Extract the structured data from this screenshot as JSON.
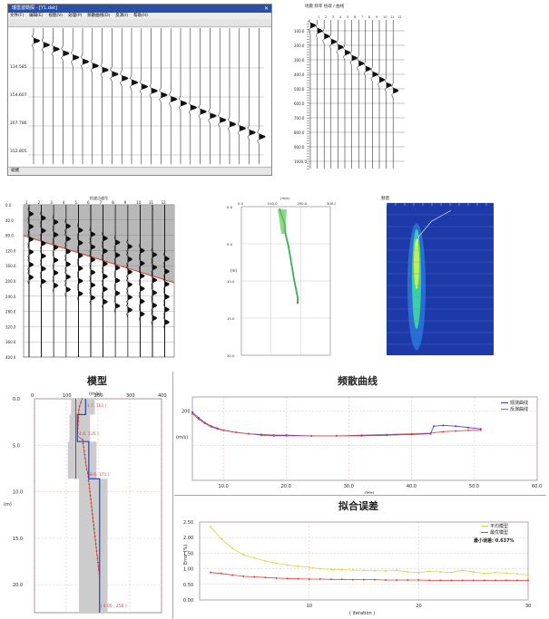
{
  "window1": {
    "title": "瑞雷波勘探 - [Y1.dat]",
    "menu": [
      "文件(F)",
      "编辑(E)",
      "视图(V)",
      "处理(P)",
      "频散曲线(D)",
      "反演(I)",
      "帮助(H)"
    ],
    "depth_labels": [
      "134.585",
      "154.607",
      "267.786",
      "312.805"
    ],
    "status_left": "就绪"
  },
  "window2": {
    "title": "地震 频率 拾取 / 曲线",
    "depth_labels": [
      "100.0",
      "200.0",
      "300.0",
      "400.0",
      "500.0",
      "600.0",
      "700.0",
      "800.0",
      "900.0",
      "1000.0"
    ]
  },
  "shot_gather": {
    "header": "检波点道号",
    "top_ticks": [
      "1",
      "2",
      "3",
      "4",
      "5",
      "6",
      "7",
      "8",
      "9",
      "10",
      "11",
      "12"
    ],
    "left_ticks": [
      "0.0",
      "40.0",
      "80.0",
      "120.0",
      "160.0",
      "200.0",
      "240.0",
      "280.0",
      "320.0",
      "360.0",
      "400.0"
    ]
  },
  "green_plot": {
    "xunit": "(m/s)",
    "xticks": [
      "0.0",
      "100.0",
      "200.0",
      "300.0"
    ],
    "ylabel": "(m)",
    "yticks": [
      "0.0",
      "5.0",
      "10.0",
      "15.0",
      "20.0"
    ]
  },
  "spectrum": {
    "title": "频谱"
  },
  "model": {
    "title": "模型",
    "xunit": "(m/s)",
    "xticks": [
      "0",
      "100",
      "200",
      "300",
      "400"
    ],
    "ylabel": "(m)",
    "yticks": [
      "0.0",
      "5.0",
      "10.0",
      "15.0",
      "20.0"
    ],
    "annotations": [
      "1.7, 161 )",
      "4.6, 135 )",
      "8.6, 171 )",
      "( 4.05 , 256 )"
    ]
  },
  "dispersion": {
    "title": "频散曲线",
    "ylabel": "(m/s)",
    "xlabel": "(Hz)",
    "ytick": "200",
    "xticks": [
      "10.0",
      "20.0",
      "30.0",
      "40.0",
      "50.0",
      "60.0"
    ],
    "legend": [
      "观测曲线",
      "反演曲线"
    ],
    "colors": {
      "observed": "#3a3ae0",
      "inverted": "#e04040"
    }
  },
  "chart_data": [
    {
      "type": "line",
      "title": "频散曲线",
      "xlabel": "(Hz)",
      "ylabel": "(m/s)",
      "xlim": [
        5,
        60
      ],
      "ylim": [
        100,
        220
      ],
      "series": [
        {
          "name": "观测曲线",
          "x": [
            5,
            6,
            7,
            8,
            9,
            10,
            12,
            14,
            16,
            18,
            20,
            24,
            28,
            32,
            36,
            40,
            43,
            43.5,
            45,
            47,
            49,
            51
          ],
          "y": [
            198,
            190,
            183,
            178,
            175,
            172,
            169,
            167,
            166,
            165,
            165,
            164,
            164,
            164,
            165,
            166,
            167,
            178,
            179,
            178,
            176,
            174
          ]
        },
        {
          "name": "反演曲线",
          "x": [
            5,
            6,
            7,
            8,
            9,
            10,
            12,
            14,
            16,
            18,
            20,
            24,
            28,
            32,
            36,
            40,
            43,
            45,
            47,
            49,
            51
          ],
          "y": [
            196,
            188,
            182,
            177,
            174,
            172,
            169,
            167,
            165,
            164,
            164,
            164,
            164,
            165,
            166,
            167,
            168,
            170,
            171,
            172,
            172
          ]
        }
      ]
    },
    {
      "type": "line",
      "title": "拟合误差",
      "xlabel": "( iteration )",
      "ylabel": "Error (%)",
      "xlim": [
        0,
        30
      ],
      "ylim": [
        0,
        2.5
      ],
      "series": [
        {
          "name": "平均模型",
          "x": [
            1,
            2,
            3,
            4,
            5,
            6,
            7,
            8,
            9,
            10,
            11,
            12,
            13,
            14,
            15,
            16,
            17,
            18,
            19,
            20,
            21,
            22,
            23,
            24,
            25,
            26,
            27,
            28,
            29,
            30
          ],
          "y": [
            2.35,
            1.95,
            1.65,
            1.45,
            1.35,
            1.25,
            1.18,
            1.12,
            1.08,
            1.05,
            1.0,
            0.98,
            0.97,
            0.96,
            0.95,
            0.94,
            0.93,
            0.95,
            0.9,
            0.88,
            0.92,
            0.9,
            0.88,
            0.95,
            0.9,
            0.85,
            0.88,
            0.86,
            0.84,
            0.8
          ]
        },
        {
          "name": "最优模型",
          "x": [
            1,
            2,
            3,
            4,
            5,
            6,
            7,
            8,
            9,
            10,
            11,
            12,
            13,
            14,
            15,
            16,
            17,
            18,
            19,
            20,
            21,
            22,
            23,
            24,
            25,
            26,
            27,
            28,
            29,
            30
          ],
          "y": [
            0.88,
            0.85,
            0.8,
            0.76,
            0.74,
            0.72,
            0.7,
            0.69,
            0.68,
            0.67,
            0.67,
            0.66,
            0.66,
            0.65,
            0.65,
            0.65,
            0.64,
            0.64,
            0.64,
            0.64,
            0.63,
            0.63,
            0.63,
            0.63,
            0.63,
            0.63,
            0.63,
            0.63,
            0.63,
            0.63
          ]
        }
      ]
    }
  ],
  "misfit": {
    "title": "拟合误差",
    "ylabel": "Error (%)",
    "xlabel": "( iteration )",
    "yticks": [
      "2.50",
      "2.00",
      "1.50",
      "1.00",
      "0.50",
      "0.00"
    ],
    "xticks": [
      "10",
      "20",
      "30"
    ],
    "legend": [
      "平均模型",
      "最优模型"
    ],
    "min_error_label": "最小误差: 0.637%",
    "colors": {
      "avg": "#d8d84a",
      "best": "#e04040"
    }
  }
}
